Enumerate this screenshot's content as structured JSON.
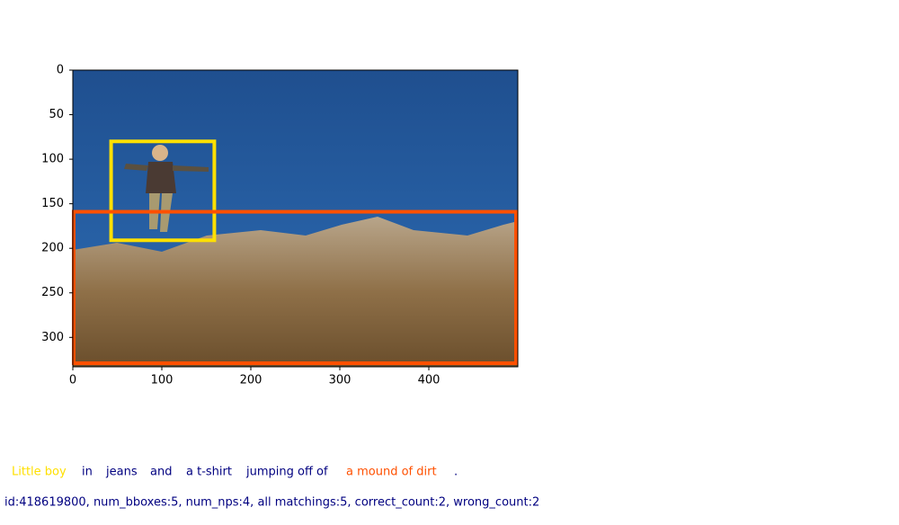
{
  "chart_data": {
    "type": "image",
    "xlim": [
      0,
      500
    ],
    "ylim": [
      333,
      0
    ],
    "xticks": [
      0,
      100,
      200,
      300,
      400
    ],
    "yticks": [
      0,
      50,
      100,
      150,
      200,
      250,
      300
    ],
    "boxes": [
      {
        "x0": 43,
        "y0": 80,
        "x1": 159,
        "y1": 191,
        "color": "#ffe000"
      },
      {
        "x0": 1,
        "y0": 159,
        "x1": 498,
        "y1": 329,
        "color": "#ff5000"
      }
    ],
    "caption": [
      {
        "text": "Little boy",
        "color": "#ffe000"
      },
      {
        "text": "in",
        "color": "#000080"
      },
      {
        "text": "jeans",
        "color": "#000080"
      },
      {
        "text": "and",
        "color": "#000080"
      },
      {
        "text": "a t-shirt",
        "color": "#000080"
      },
      {
        "text": "jumping off of",
        "color": "#000080"
      },
      {
        "text": "a mound of dirt",
        "color": "#ff5000"
      },
      {
        "text": ".",
        "color": "#000080"
      }
    ],
    "info": "id:418619800, num_bboxes:5, num_nps:4, all matchings:5, correct_count:2, wrong_count:2"
  }
}
